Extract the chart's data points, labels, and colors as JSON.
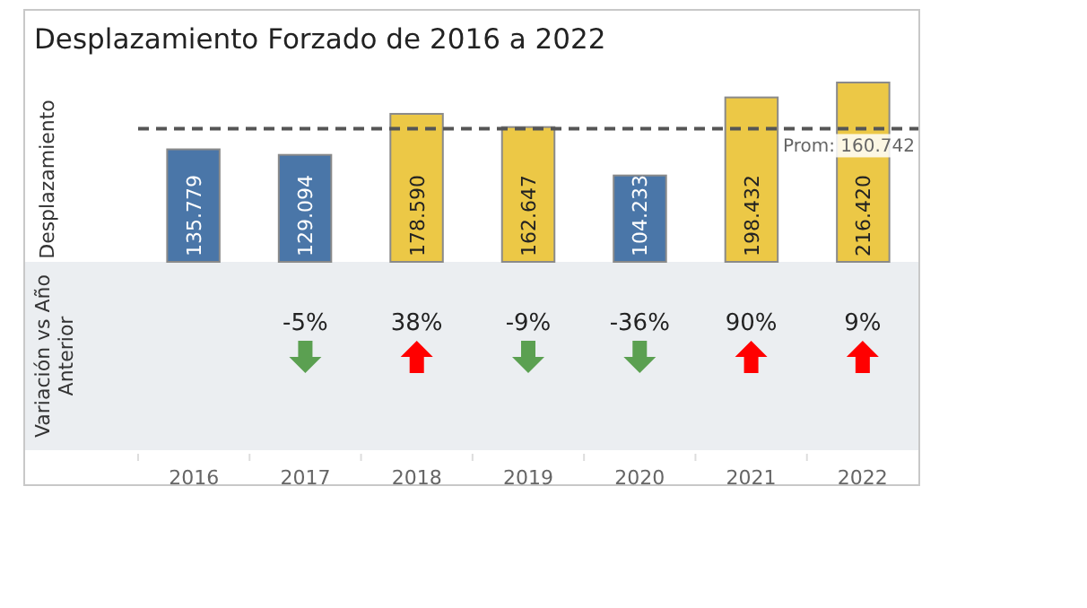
{
  "chart_data": {
    "type": "bar",
    "title": "Desplazamiento Forzado de 2016 a 2022",
    "ylabel": "Desplazamiento",
    "categories": [
      "2016",
      "2017",
      "2018",
      "2019",
      "2020",
      "2021",
      "2022"
    ],
    "values": [
      135779,
      129094,
      178590,
      162647,
      104233,
      198432,
      216420
    ],
    "value_labels": [
      "135.779",
      "129.094",
      "178.590",
      "162.647",
      "104.233",
      "198.432",
      "216.420"
    ],
    "colors": [
      "#4a76a8",
      "#4a76a8",
      "#ecc846",
      "#ecc846",
      "#4a76a8",
      "#ecc846",
      "#ecc846"
    ],
    "tick_labels": "x",
    "ref_lines": [
      {
        "axis": "y",
        "value": 160742,
        "label": "Prom: 160.742",
        "color": "#555555",
        "line_style": "dashed"
      }
    ],
    "annotations": [
      "Variación vs Año Anterior",
      "-5%",
      "38%",
      "-9%",
      "-36%",
      "90%",
      "9%"
    ]
  }
}
